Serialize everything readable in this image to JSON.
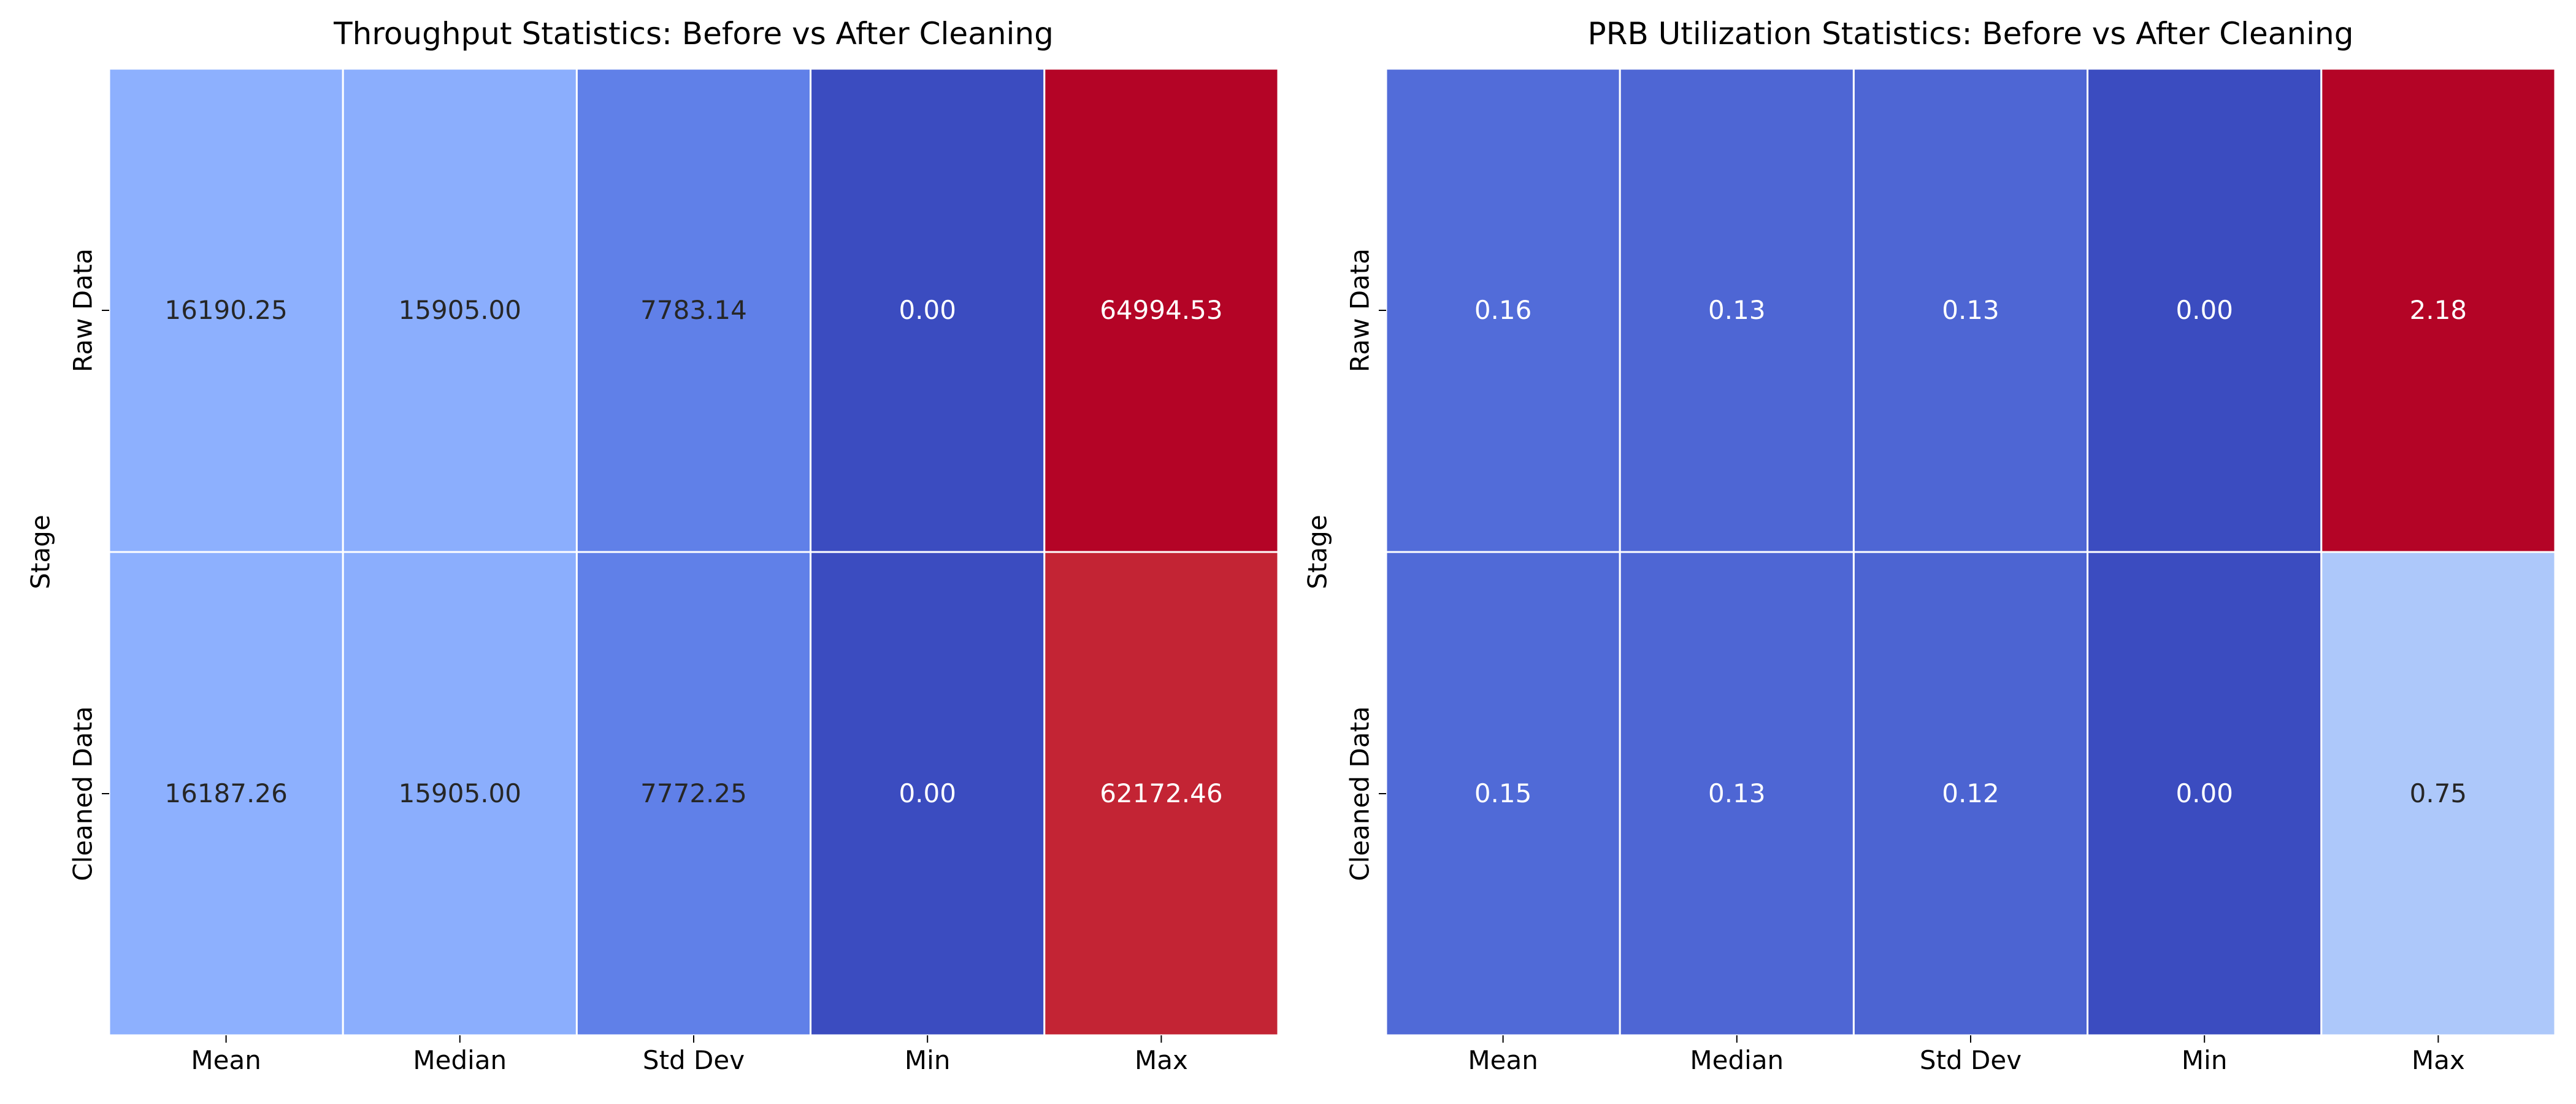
{
  "chart_data": [
    {
      "type": "heatmap",
      "title": "Throughput Statistics: Before vs After Cleaning",
      "xlabel": "",
      "ylabel": "Stage",
      "columns": [
        "Mean",
        "Median",
        "Std Dev",
        "Min",
        "Max"
      ],
      "rows": [
        "Raw Data",
        "Cleaned Data"
      ],
      "values": [
        [
          16190.25,
          15905.0,
          7783.14,
          0.0,
          64994.53
        ],
        [
          16187.26,
          15905.0,
          7772.25,
          0.0,
          62172.46
        ]
      ],
      "cell_labels": [
        [
          "16190.25",
          "15905.00",
          "7783.14",
          "0.00",
          "64994.53"
        ],
        [
          "16187.26",
          "15905.00",
          "7772.25",
          "0.00",
          "62172.46"
        ]
      ],
      "colormap": "coolwarm",
      "colorbar": false,
      "grid": false
    },
    {
      "type": "heatmap",
      "title": "PRB Utilization Statistics: Before vs After Cleaning",
      "xlabel": "",
      "ylabel": "Stage",
      "columns": [
        "Mean",
        "Median",
        "Std Dev",
        "Min",
        "Max"
      ],
      "rows": [
        "Raw Data",
        "Cleaned Data"
      ],
      "values": [
        [
          0.16,
          0.13,
          0.13,
          0.0,
          2.18
        ],
        [
          0.15,
          0.13,
          0.12,
          0.0,
          0.75
        ]
      ],
      "cell_labels": [
        [
          "0.16",
          "0.13",
          "0.13",
          "0.00",
          "2.18"
        ],
        [
          "0.15",
          "0.13",
          "0.12",
          "0.00",
          "0.75"
        ]
      ],
      "colormap": "coolwarm",
      "colorbar": false,
      "grid": false
    }
  ]
}
